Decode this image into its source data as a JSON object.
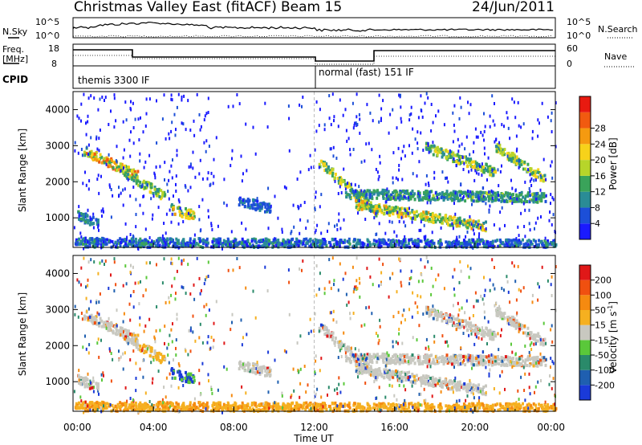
{
  "header": {
    "title": "Christmas Valley East (fitACF)",
    "beam": "Beam 15",
    "date": "24/Jun/2011"
  },
  "top_panels": {
    "nsky_label": "N.Sky",
    "nsky_ticks": [
      "10^5",
      "10^0"
    ],
    "nsearch_label": "N.Search",
    "nsearch_ticks": [
      "10^5",
      "10^0"
    ],
    "freq_label_line1": "Freq.",
    "freq_label_line2": "[MHz]",
    "freq_ticks": [
      "18",
      "8"
    ],
    "nave_label": "Nave",
    "nave_ticks": [
      "60",
      "0"
    ],
    "cpid_label": "CPID",
    "cpid_segments": [
      {
        "label": "themis 3300 IF",
        "start_hour": 0,
        "end_hour": 12
      },
      {
        "label": "normal (fast) 151 IF",
        "start_hour": 12,
        "end_hour": 24
      }
    ]
  },
  "chart_data": [
    {
      "type": "heatmap",
      "name": "power",
      "ylabel": "Slant Range [km]",
      "yticks": [
        "1000",
        "2000",
        "3000",
        "4000"
      ],
      "ylim": [
        180,
        4500
      ],
      "xlim": [
        0,
        24
      ],
      "colorbar": {
        "label": "Power [dB]",
        "ticks": [
          "4",
          "8",
          "12",
          "16",
          "20",
          "24",
          "28"
        ],
        "colors": [
          "#1a1aff",
          "#1c4fd8",
          "#2a8c96",
          "#3aa35a",
          "#b7d52a",
          "#f7d21a",
          "#f59a10",
          "#f15a10",
          "#e81a10"
        ]
      },
      "echo_regions": [
        {
          "x_start": 0.5,
          "x_end": 3.2,
          "y_start": 2900,
          "y_end": 2200,
          "peak_db": 26
        },
        {
          "x_start": 2.5,
          "x_end": 4.6,
          "y_start": 2300,
          "y_end": 1600,
          "peak_db": 18
        },
        {
          "x_start": 4.8,
          "x_end": 6.0,
          "y_start": 1300,
          "y_end": 1100,
          "peak_db": 22
        },
        {
          "x_start": 0.2,
          "x_end": 1.2,
          "y_start": 1100,
          "y_end": 900,
          "peak_db": 12
        },
        {
          "x_start": 8.2,
          "x_end": 9.8,
          "y_start": 1500,
          "y_end": 1300,
          "peak_db": 8
        },
        {
          "x_start": 12.2,
          "x_end": 15.1,
          "y_start": 2600,
          "y_end": 1200,
          "peak_db": 20
        },
        {
          "x_start": 13.5,
          "x_end": 23.5,
          "y_start": 1700,
          "y_end": 1600,
          "peak_db": 14
        },
        {
          "x_start": 14.0,
          "x_end": 20.5,
          "y_start": 1400,
          "y_end": 800,
          "peak_db": 22
        },
        {
          "x_start": 17.5,
          "x_end": 21.0,
          "y_start": 3000,
          "y_end": 2300,
          "peak_db": 18
        },
        {
          "x_start": 21.0,
          "x_end": 23.5,
          "y_start": 3000,
          "y_end": 2100,
          "peak_db": 20
        },
        {
          "x_start": 0.0,
          "x_end": 24.0,
          "y_start": 350,
          "y_end": 300,
          "peak_db": 10
        }
      ]
    },
    {
      "type": "heatmap",
      "name": "velocity",
      "ylabel": "Slant Range [km]",
      "yticks": [
        "1000",
        "2000",
        "3000",
        "4000"
      ],
      "ylim": [
        180,
        4500
      ],
      "xlim": [
        0,
        24
      ],
      "xlabel": "Time UT",
      "xticks": [
        "00:00",
        "04:00",
        "08:00",
        "12:00",
        "16:00",
        "20:00",
        "00:00"
      ],
      "colorbar": {
        "label": "Velocity [m s",
        "label_sup": "-1",
        "label_end": "]",
        "ticks": [
          "200",
          "100",
          "50",
          "15",
          "-15",
          "-50",
          "-100",
          "-200"
        ],
        "colors": [
          "#1a3ad8",
          "#1f5fb0",
          "#2a8a6a",
          "#5ac83a",
          "#c8c8c0",
          "#f5b020",
          "#f58a10",
          "#f05010",
          "#e01818"
        ]
      }
    }
  ]
}
